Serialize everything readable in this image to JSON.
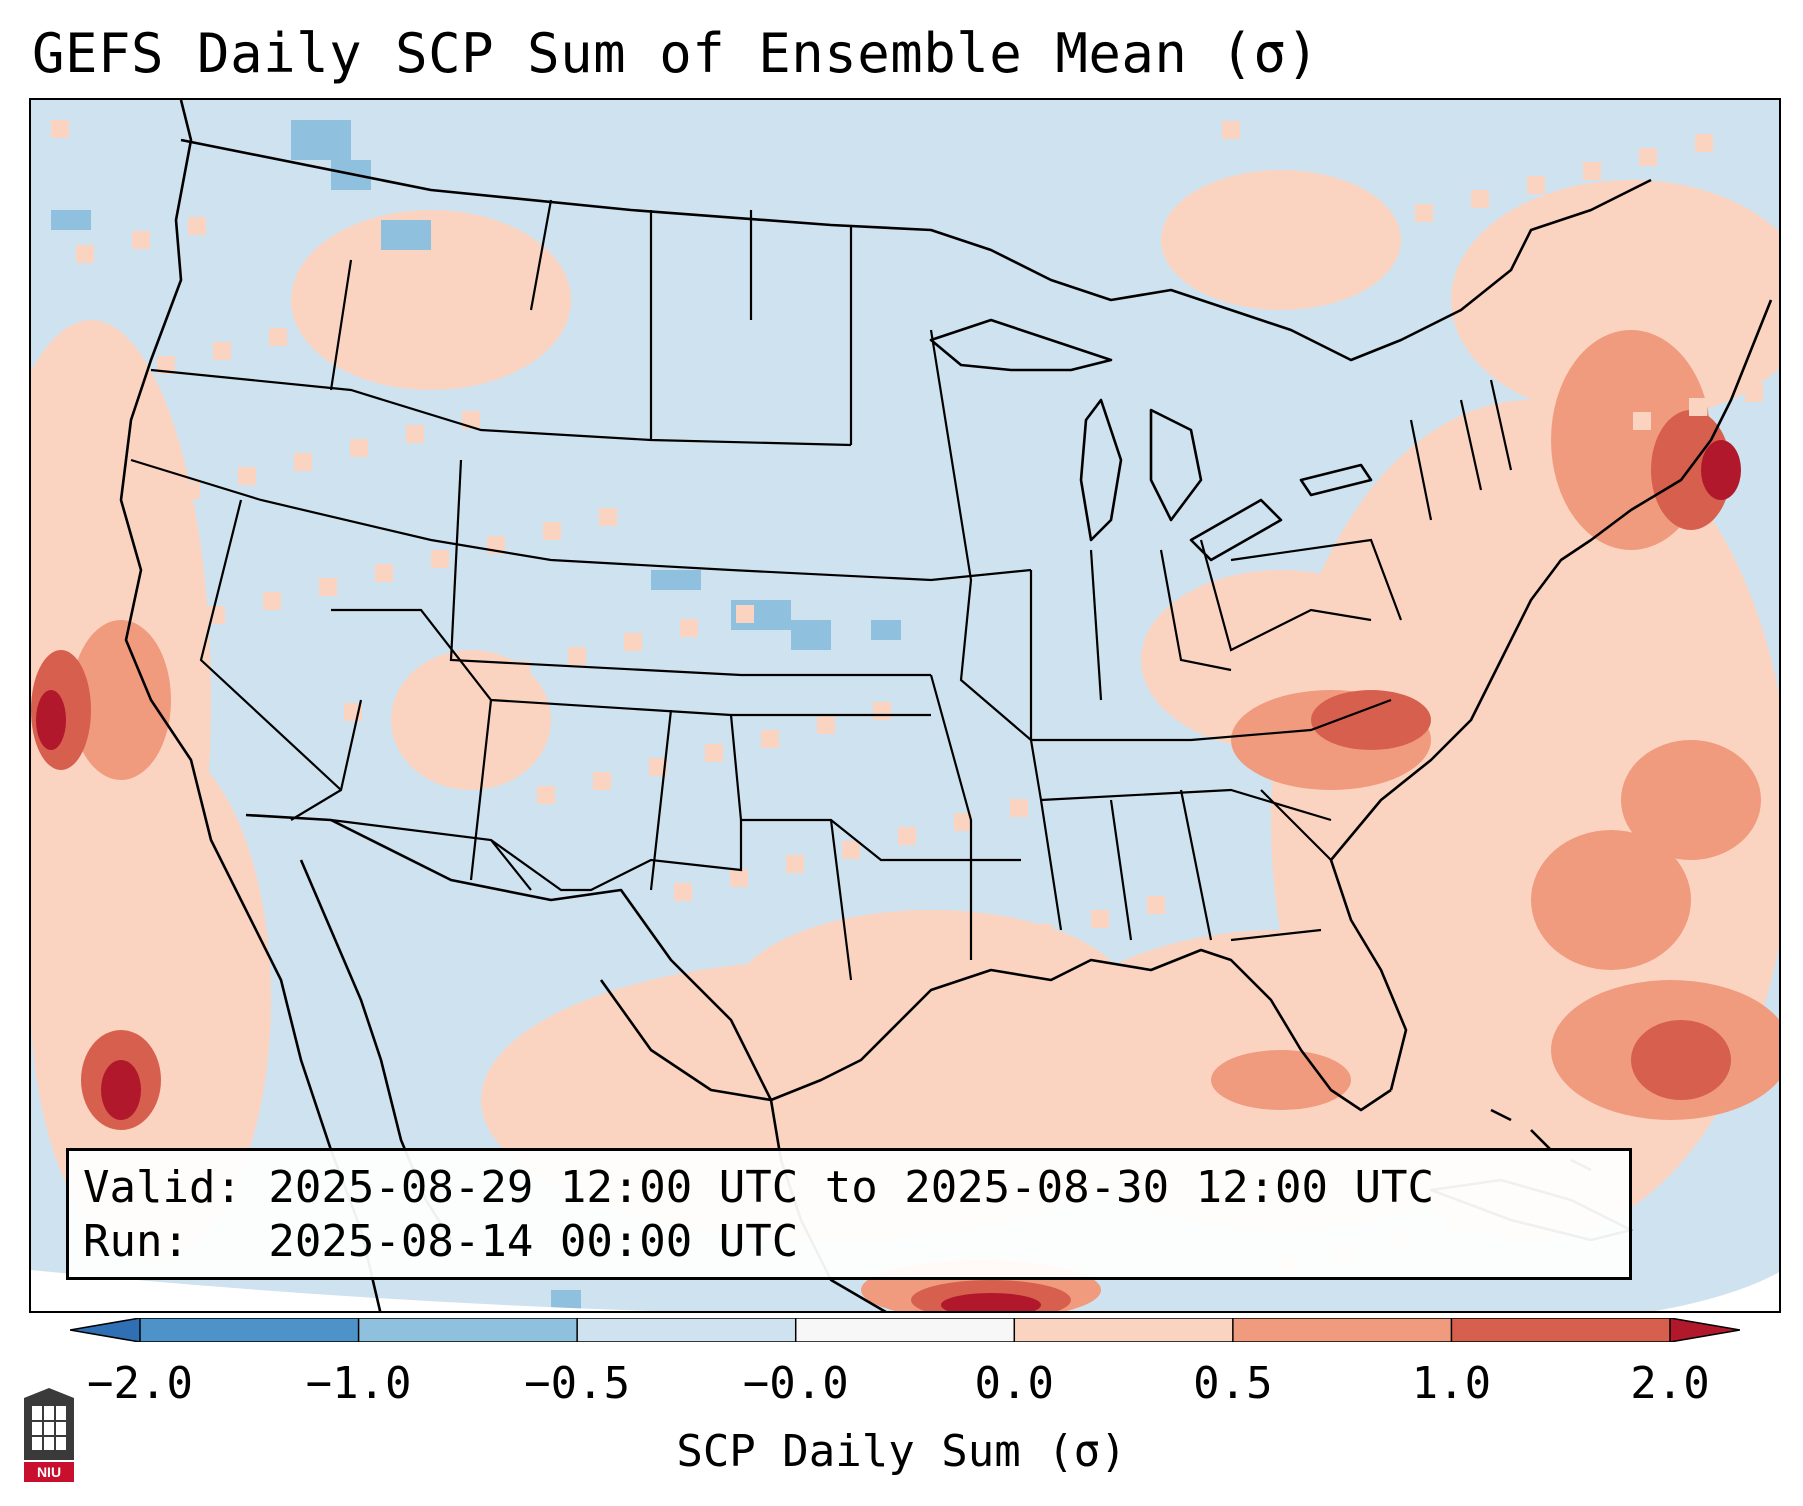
{
  "title": "GEFS Daily SCP Sum of Ensemble Mean (σ)",
  "info": {
    "valid_line": "Valid: 2025-08-29 12:00 UTC to 2025-08-30 12:00 UTC",
    "run_line": "Run:   2025-08-14 00:00 UTC"
  },
  "colorbar": {
    "label": "SCP Daily Sum (σ)",
    "ticks": [
      "−2.0",
      "−1.0",
      "−0.5",
      "−0.0",
      "0.0",
      "0.5",
      "1.0",
      "2.0"
    ],
    "bins": [
      {
        "range": "< -2.0",
        "color": "#2f6fb4"
      },
      {
        "range": "-2.0 to -1.0",
        "color": "#4d93c9"
      },
      {
        "range": "-1.0 to -0.5",
        "color": "#8fc0de"
      },
      {
        "range": "-0.5 to -0.0",
        "color": "#cfe2ef"
      },
      {
        "range": "-0.0 to 0.0",
        "color": "#f7f7f7"
      },
      {
        "range": "0.0 to 0.5",
        "color": "#fbd4c1"
      },
      {
        "range": "0.5 to 1.0",
        "color": "#f09a7e"
      },
      {
        "range": "1.0 to 2.0",
        "color": "#d6604d"
      },
      {
        "range": "> 2.0",
        "color": "#b2182b"
      }
    ]
  },
  "map": {
    "region": "CONUS",
    "background_color": "#cfe2ef",
    "positive_color": "#fbd4c1",
    "moderate_color": "#f09a7e",
    "strong_color": "#d6604d",
    "extreme_color": "#b2182b",
    "negative_color": "#8fc0de"
  },
  "logo": {
    "name": "niu-logo",
    "text": "NIU"
  }
}
